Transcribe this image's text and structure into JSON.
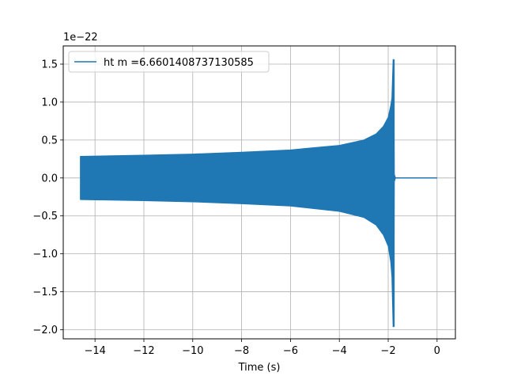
{
  "chart_data": {
    "type": "line",
    "title": "",
    "xlabel": "Time (s)",
    "ylabel": "",
    "y_offset_label": "1e−22",
    "xlim": [
      -15.3,
      0.75
    ],
    "ylim": [
      -2.12,
      1.74
    ],
    "x_ticks": [
      -14,
      -12,
      -10,
      -8,
      -6,
      -4,
      -2,
      0
    ],
    "y_ticks": [
      -2.0,
      -1.5,
      -1.0,
      -0.5,
      0.0,
      0.5,
      1.0,
      1.5
    ],
    "x_tick_labels": [
      "−14",
      "−12",
      "−10",
      "−8",
      "−6",
      "−4",
      "−2",
      "0"
    ],
    "y_tick_labels": [
      "−2.0",
      "−1.5",
      "−1.0",
      "−0.5",
      "0.0",
      "0.5",
      "1.0",
      "1.5"
    ],
    "grid": true,
    "legend_position": "upper-left",
    "series": [
      {
        "name": "ht m =6.6601408737130585",
        "color": "#1f77b4",
        "signal_start": -14.6,
        "merger_time": -1.75,
        "end_time": 0.0,
        "envelope_upper": [
          [
            -14.6,
            0.285
          ],
          [
            -12.0,
            0.3
          ],
          [
            -10.0,
            0.315
          ],
          [
            -8.0,
            0.34
          ],
          [
            -6.0,
            0.37
          ],
          [
            -4.0,
            0.43
          ],
          [
            -3.0,
            0.5
          ],
          [
            -2.5,
            0.58
          ],
          [
            -2.2,
            0.68
          ],
          [
            -2.0,
            0.8
          ],
          [
            -1.9,
            0.95
          ],
          [
            -1.85,
            1.05
          ],
          [
            -1.8,
            1.56
          ],
          [
            -1.77,
            1.56
          ],
          [
            -1.75,
            0.05
          ],
          [
            -1.7,
            0.0
          ]
        ],
        "envelope_lower": [
          [
            -14.6,
            -0.285
          ],
          [
            -12.0,
            -0.3
          ],
          [
            -10.0,
            -0.315
          ],
          [
            -8.0,
            -0.34
          ],
          [
            -6.0,
            -0.37
          ],
          [
            -4.0,
            -0.44
          ],
          [
            -3.0,
            -0.52
          ],
          [
            -2.5,
            -0.62
          ],
          [
            -2.2,
            -0.75
          ],
          [
            -2.0,
            -0.9
          ],
          [
            -1.9,
            -1.1
          ],
          [
            -1.85,
            -1.3
          ],
          [
            -1.8,
            -1.96
          ],
          [
            -1.77,
            -1.96
          ],
          [
            -1.75,
            -0.05
          ],
          [
            -1.7,
            0.0
          ]
        ]
      }
    ]
  }
}
